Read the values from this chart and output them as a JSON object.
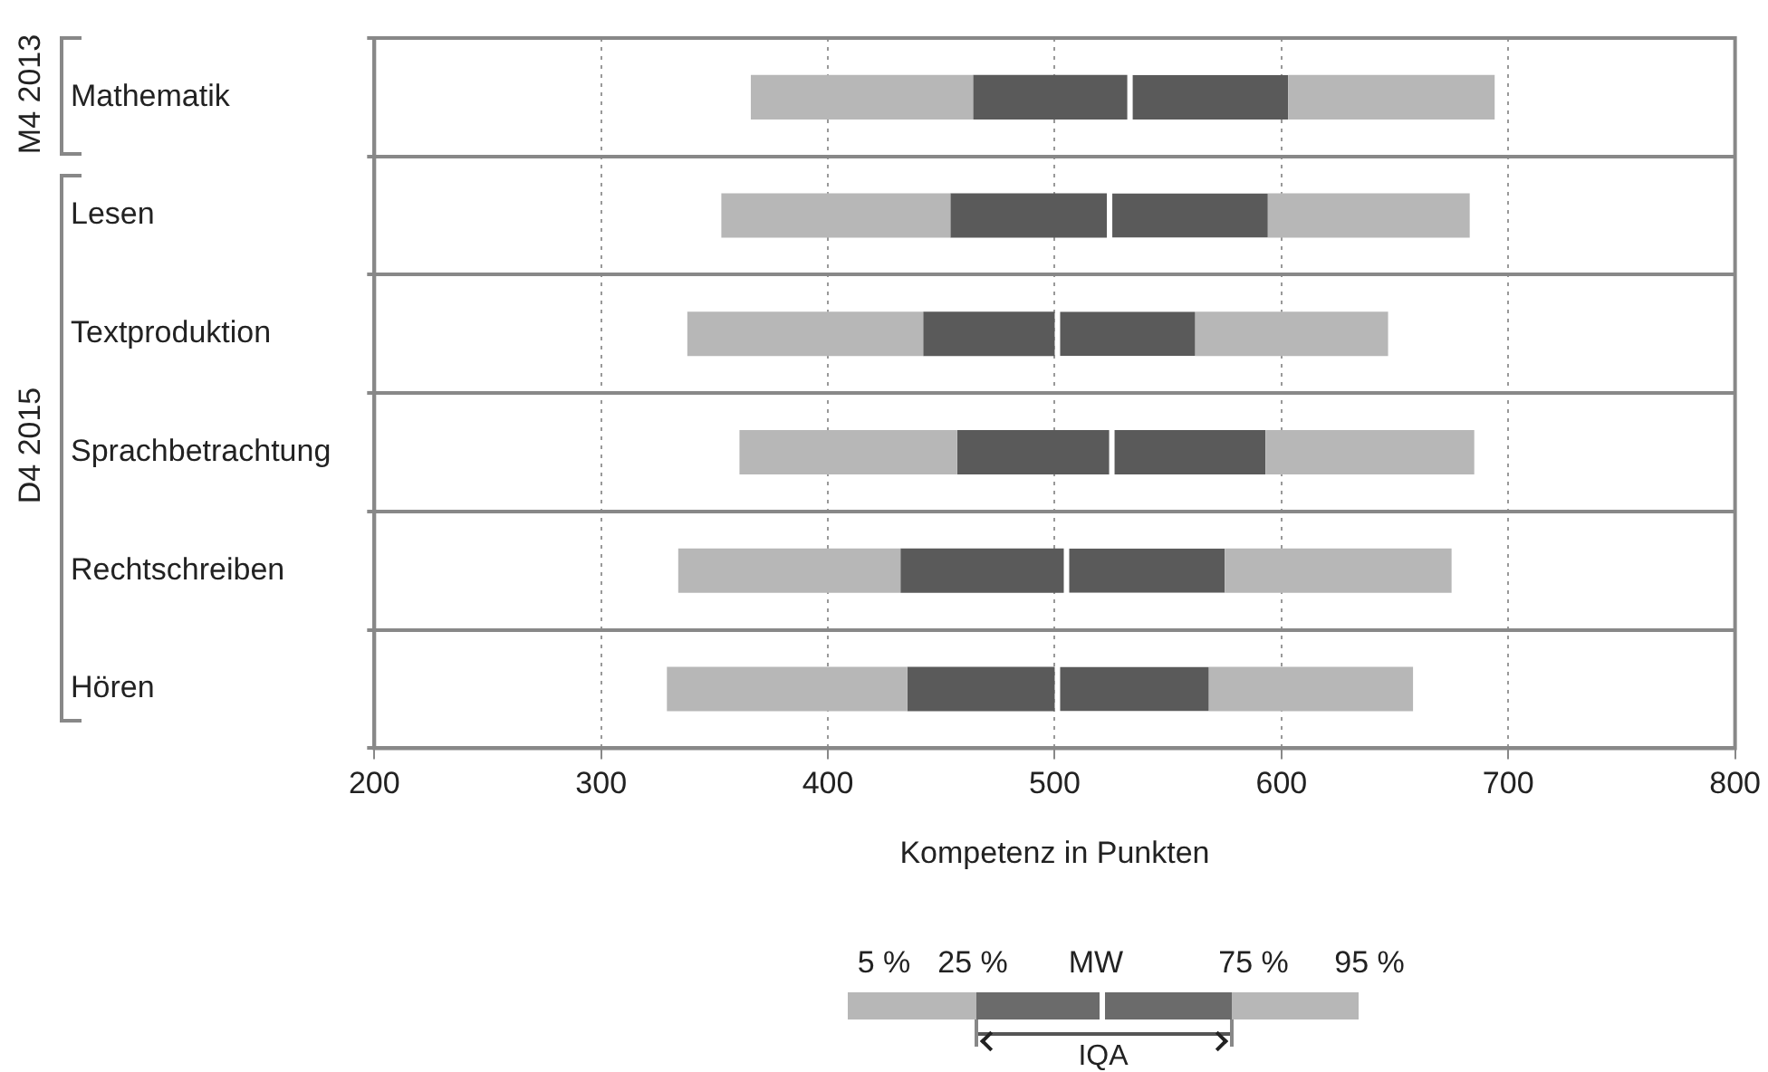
{
  "chart_data": {
    "type": "bar",
    "orientation": "horizontal",
    "xlabel": "Kompetenz in Punkten",
    "categories": [
      "Mathematik",
      "Lesen",
      "Textproduktion",
      "Sprachbetrachtung",
      "Rechtschreiben",
      "Hören"
    ],
    "series": [
      {
        "color": "#b7b7b7",
        "base": [
          366,
          353,
          338,
          361,
          334,
          329
        ],
        "values": [
          98,
          101,
          104,
          96,
          98,
          106
        ]
      },
      {
        "color": "#5a5a5a",
        "base": [
          464,
          454,
          442,
          457,
          432,
          435
        ],
        "values": [
          68,
          69,
          58,
          67,
          72,
          65
        ]
      },
      {
        "color": "#5a5a5a",
        "base": [
          532,
          523,
          500,
          524,
          504,
          500
        ],
        "values": [
          71,
          71,
          62,
          69,
          71,
          68
        ]
      },
      {
        "color": "#b7b7b7",
        "base": [
          603,
          594,
          562,
          593,
          575,
          568
        ],
        "values": [
          91,
          89,
          85,
          92,
          100,
          90
        ]
      }
    ],
    "xlim": [
      200,
      800
    ],
    "xticks": [
      200,
      300,
      400,
      500,
      600,
      700,
      800
    ],
    "grid": true,
    "annotations": [
      "M4 2013",
      "D4 2015",
      "5 %",
      "25 %",
      "MW",
      "75 %",
      "95 %",
      "IQA"
    ]
  }
}
